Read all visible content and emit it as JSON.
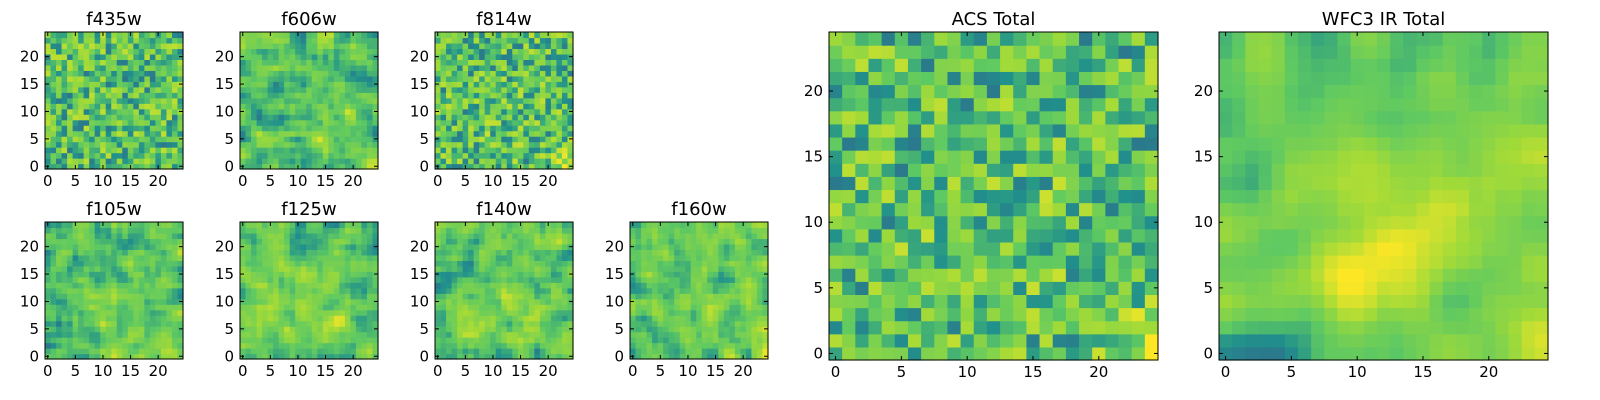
{
  "chart_data": [
    {
      "id": "f435w",
      "type": "heatmap",
      "title": "f435w",
      "grid_size": [
        25,
        25
      ],
      "xlim": [
        -0.5,
        24.5
      ],
      "ylim": [
        -0.5,
        24.5
      ],
      "xticks": [
        "0",
        "5",
        "10",
        "15",
        "20"
      ],
      "yticks": [
        "0",
        "5",
        "10",
        "15",
        "20"
      ],
      "colormap": "viridis",
      "value_range": [
        0,
        1
      ]
    },
    {
      "id": "f606w",
      "type": "heatmap",
      "title": "f606w",
      "grid_size": [
        25,
        25
      ],
      "xlim": [
        -0.5,
        24.5
      ],
      "ylim": [
        -0.5,
        24.5
      ],
      "xticks": [
        "0",
        "5",
        "10",
        "15",
        "20"
      ],
      "yticks": [
        "0",
        "5",
        "10",
        "15",
        "20"
      ],
      "colormap": "viridis",
      "value_range": [
        0,
        1
      ]
    },
    {
      "id": "f814w",
      "type": "heatmap",
      "title": "f814w",
      "grid_size": [
        25,
        25
      ],
      "xlim": [
        -0.5,
        24.5
      ],
      "ylim": [
        -0.5,
        24.5
      ],
      "xticks": [
        "0",
        "5",
        "10",
        "15",
        "20"
      ],
      "yticks": [
        "0",
        "5",
        "10",
        "15",
        "20"
      ],
      "colormap": "viridis",
      "value_range": [
        0,
        1
      ]
    },
    {
      "id": "f105w",
      "type": "heatmap",
      "title": "f105w",
      "grid_size": [
        25,
        25
      ],
      "xlim": [
        -0.5,
        24.5
      ],
      "ylim": [
        -0.5,
        24.5
      ],
      "xticks": [
        "0",
        "5",
        "10",
        "15",
        "20"
      ],
      "yticks": [
        "0",
        "5",
        "10",
        "15",
        "20"
      ],
      "colormap": "viridis",
      "value_range": [
        0,
        1
      ]
    },
    {
      "id": "f125w",
      "type": "heatmap",
      "title": "f125w",
      "grid_size": [
        25,
        25
      ],
      "xlim": [
        -0.5,
        24.5
      ],
      "ylim": [
        -0.5,
        24.5
      ],
      "xticks": [
        "0",
        "5",
        "10",
        "15",
        "20"
      ],
      "yticks": [
        "0",
        "5",
        "10",
        "15",
        "20"
      ],
      "colormap": "viridis",
      "value_range": [
        0,
        1
      ]
    },
    {
      "id": "f140w",
      "type": "heatmap",
      "title": "f140w",
      "grid_size": [
        25,
        25
      ],
      "xlim": [
        -0.5,
        24.5
      ],
      "ylim": [
        -0.5,
        24.5
      ],
      "xticks": [
        "0",
        "5",
        "10",
        "15",
        "20"
      ],
      "yticks": [
        "0",
        "5",
        "10",
        "15",
        "20"
      ],
      "colormap": "viridis",
      "value_range": [
        0,
        1
      ]
    },
    {
      "id": "f160w",
      "type": "heatmap",
      "title": "f160w",
      "grid_size": [
        25,
        25
      ],
      "xlim": [
        -0.5,
        24.5
      ],
      "ylim": [
        -0.5,
        24.5
      ],
      "xticks": [
        "0",
        "5",
        "10",
        "15",
        "20"
      ],
      "yticks": [
        "0",
        "5",
        "10",
        "15",
        "20"
      ],
      "colormap": "viridis",
      "value_range": [
        0,
        1
      ]
    },
    {
      "id": "acs",
      "type": "heatmap",
      "title": "ACS Total",
      "grid_size": [
        25,
        25
      ],
      "xlim": [
        -0.5,
        24.5
      ],
      "ylim": [
        -0.5,
        24.5
      ],
      "xticks": [
        "0",
        "5",
        "10",
        "15",
        "20"
      ],
      "yticks": [
        "0",
        "5",
        "10",
        "15",
        "20"
      ],
      "colormap": "viridis",
      "value_range": [
        0,
        1
      ]
    },
    {
      "id": "wfc3",
      "type": "heatmap",
      "title": "WFC3 IR Total",
      "grid_size": [
        25,
        25
      ],
      "xlim": [
        -0.5,
        24.5
      ],
      "ylim": [
        -0.5,
        24.5
      ],
      "xticks": [
        "0",
        "5",
        "10",
        "15",
        "20"
      ],
      "yticks": [
        "0",
        "5",
        "10",
        "15",
        "20"
      ],
      "colormap": "viridis",
      "value_range": [
        0,
        1
      ]
    }
  ],
  "colormap_stops": [
    "#440154",
    "#3b528b",
    "#21918c",
    "#5ec962",
    "#a0da39",
    "#fde725"
  ]
}
